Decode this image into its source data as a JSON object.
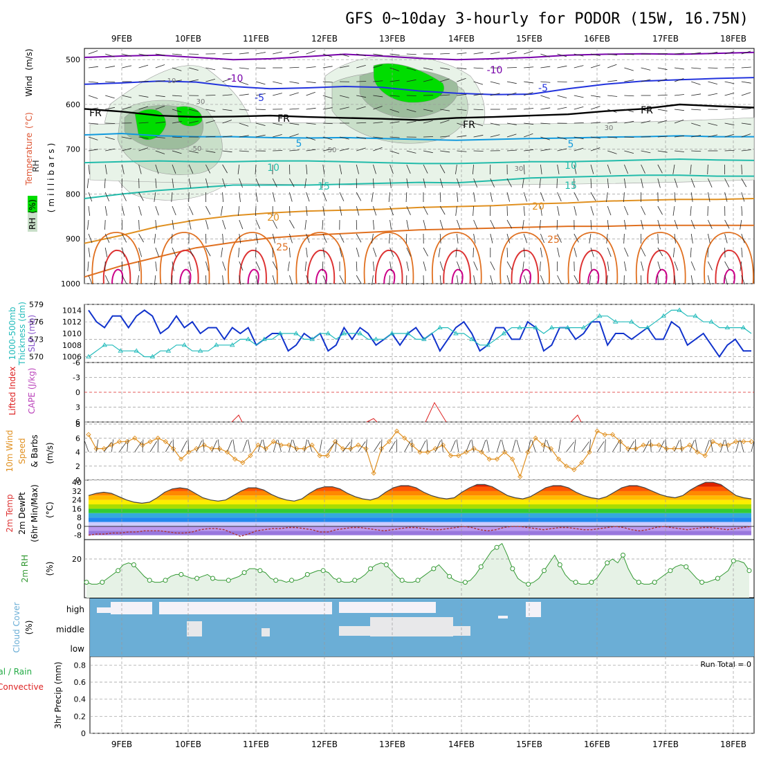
{
  "title": "GFS 0~10day 3-hourly for PODOR (15W, 16.75N)",
  "dates": [
    "9FEB",
    "10FEB",
    "11FEB",
    "12FEB",
    "13FEB",
    "14FEB",
    "15FEB",
    "16FEB",
    "17FEB",
    "18FEB"
  ],
  "colors": {
    "rh_light": "#e8f3e8",
    "rh_mid": "#c9dfc9",
    "rh_dark": "#9dbd9d",
    "rh_bright": "#00dd00",
    "temp_cold": "#7700aa",
    "temp_blue": "#2233dd",
    "temp_cyan": "#1199dd",
    "temp_teal": "#22bbaa",
    "temp_orange": "#e09020",
    "temp_red": "#dd3333",
    "temp_magenta": "#cc0088",
    "slp": "#1133cc",
    "thickness": "#22bbbb",
    "lifted": "#dd2222",
    "wind": "#e09020",
    "cloud": "#6baed6",
    "rh2m": "#339933"
  },
  "chart_data": [
    {
      "panel": "upper-air",
      "type": "contour",
      "ylabel_wind": "Wind",
      "ylabel_units": "(m/s)",
      "ylabel_temp": "Temperature",
      "ylabel_temp_units": "(°C)",
      "ylabel_rh": "RH",
      "ylabel_rh_units": "(%)",
      "ylabel_pressure": "(millibars)",
      "y_ticks": [
        "500",
        "600",
        "700",
        "800",
        "900",
        "1000"
      ],
      "y_range": [
        475,
        1000
      ],
      "isotherm_labels": [
        "-10",
        "-10",
        "-5",
        "-5",
        "FR",
        "FR",
        "FR",
        "FR",
        "5",
        "5",
        "10",
        "10",
        "15",
        "15",
        "20",
        "20",
        "25",
        "25"
      ],
      "rh_labels": [
        "10",
        "30",
        "50",
        "50",
        "30",
        "30"
      ],
      "isotherms": [
        {
          "label": "-10",
          "levels": [
            495,
            492,
            490,
            495,
            500,
            498,
            493,
            488,
            492,
            497,
            500,
            498,
            495,
            490,
            488,
            487,
            488,
            486,
            484
          ]
        },
        {
          "label": "-5",
          "levels": [
            555,
            552,
            548,
            550,
            560,
            565,
            563,
            560,
            562,
            570,
            575,
            578,
            577,
            565,
            555,
            548,
            545,
            542,
            540
          ]
        },
        {
          "label": "FR",
          "levels": [
            610,
            616,
            625,
            628,
            627,
            625,
            628,
            630,
            632,
            635,
            630,
            628,
            625,
            622,
            615,
            610,
            600,
            604,
            607
          ]
        },
        {
          "label": "5",
          "levels": [
            668,
            665,
            670,
            672,
            672,
            674,
            675,
            674,
            676,
            678,
            680,
            678,
            676,
            675,
            673,
            672,
            670,
            672,
            672
          ]
        },
        {
          "label": "10",
          "levels": [
            730,
            728,
            726,
            728,
            728,
            726,
            726,
            728,
            730,
            732,
            732,
            730,
            728,
            728,
            726,
            724,
            722,
            724,
            725
          ]
        },
        {
          "label": "15",
          "levels": [
            810,
            800,
            792,
            786,
            780,
            780,
            780,
            778,
            776,
            774,
            775,
            770,
            764,
            762,
            760,
            758,
            758,
            760,
            760
          ]
        },
        {
          "label": "20",
          "levels": [
            910,
            892,
            872,
            858,
            848,
            842,
            838,
            836,
            834,
            830,
            828,
            826,
            822,
            820,
            816,
            814,
            812,
            812,
            810
          ]
        },
        {
          "label": "25",
          "levels": [
            985,
            960,
            940,
            920,
            908,
            898,
            892,
            888,
            884,
            880,
            878,
            876,
            874,
            872,
            872,
            870,
            870,
            870,
            870
          ]
        }
      ]
    },
    {
      "panel": "thickness-slp",
      "type": "line",
      "ylabel_left": "1000-500mb",
      "ylabel_left2": "Thickness (dm)",
      "ylabel_right": "SLP (mb)",
      "y_ticks_left": [
        "579",
        "576",
        "573",
        "570"
      ],
      "y_ticks_right": [
        "1014",
        "1012",
        "1010",
        "1008",
        "1006"
      ],
      "y_range_left": [
        569,
        579
      ],
      "series": [
        {
          "name": "SLP",
          "values": [
            1014,
            1012,
            1011,
            1013,
            1013,
            1011,
            1013,
            1014,
            1013,
            1010,
            1011,
            1013,
            1011,
            1012,
            1010,
            1011,
            1011,
            1009,
            1011,
            1010,
            1011,
            1008,
            1009,
            1010,
            1010,
            1007,
            1008,
            1010,
            1009,
            1010,
            1007,
            1008,
            1011,
            1009,
            1011,
            1010,
            1008,
            1009,
            1010,
            1008,
            1010,
            1011,
            1009,
            1010,
            1007,
            1009,
            1011,
            1012,
            1010,
            1007,
            1008,
            1011,
            1011,
            1009,
            1009,
            1012,
            1011,
            1007,
            1008,
            1011,
            1011,
            1009,
            1010,
            1012,
            1012,
            1008,
            1010,
            1010,
            1009,
            1010,
            1011,
            1009,
            1009,
            1012,
            1011,
            1008,
            1009,
            1010,
            1008,
            1006,
            1008,
            1009,
            1007,
            1007
          ]
        },
        {
          "name": "Thickness",
          "values": [
            570,
            571,
            572,
            572,
            571,
            571,
            571,
            570,
            570,
            571,
            571,
            572,
            572,
            571,
            571,
            571,
            572,
            572,
            572,
            573,
            573,
            572,
            573,
            573,
            574,
            574,
            574,
            573,
            573,
            574,
            574,
            573,
            574,
            574,
            574,
            573,
            573,
            573,
            574,
            574,
            574,
            573,
            573,
            574,
            575,
            575,
            574,
            574,
            573,
            572,
            572,
            573,
            574,
            575,
            575,
            575,
            575,
            574,
            575,
            575,
            575,
            575,
            575,
            576,
            577,
            577,
            576,
            576,
            576,
            575,
            575,
            576,
            577,
            578,
            578,
            577,
            577,
            576,
            576,
            575,
            575,
            575,
            575,
            574
          ]
        }
      ]
    },
    {
      "panel": "lifted-cape",
      "type": "line",
      "ylabel_left": "Lifted Index",
      "ylabel_right": "CAPE (J/kg)",
      "y_ticks": [
        "-6",
        "-3",
        "0",
        "3",
        "6"
      ],
      "y_range": [
        -6,
        6
      ]
    },
    {
      "panel": "wind10m",
      "type": "line",
      "ylabel": "10m Wind",
      "ylabel2": "Speed",
      "ylabel3": "& Barbs",
      "ylabel_units": "(m/s)",
      "y_ticks": [
        "8",
        "6",
        "4",
        "2",
        "0"
      ],
      "y_range": [
        0,
        8
      ],
      "values": [
        6.5,
        4.5,
        4.5,
        5.0,
        5.5,
        5.5,
        6.0,
        5.0,
        5.5,
        6.0,
        5.5,
        4.5,
        3.0,
        4.0,
        4.5,
        5.0,
        4.5,
        4.5,
        4.0,
        3.0,
        2.5,
        3.5,
        5.0,
        4.5,
        5.5,
        5.0,
        5.0,
        4.5,
        4.5,
        5.0,
        3.5,
        3.5,
        5.5,
        4.5,
        4.5,
        5.0,
        4.5,
        1.0,
        4.5,
        5.5,
        7.0,
        6.0,
        5.0,
        4.0,
        4.0,
        4.5,
        5.0,
        3.5,
        3.5,
        4.0,
        4.5,
        4.0,
        3.0,
        3.0,
        4.0,
        3.0,
        0.5,
        4.0,
        6.0,
        5.0,
        4.5,
        3.0,
        2.0,
        1.5,
        2.5,
        4.0,
        7.0,
        6.5,
        6.5,
        5.5,
        4.5,
        4.5,
        5.0,
        5.0,
        5.0,
        4.5,
        4.5,
        4.5,
        5.0,
        4.0,
        3.5,
        5.5,
        5.0,
        5.0,
        5.5,
        5.5,
        5.5
      ]
    },
    {
      "panel": "temp2m",
      "type": "area",
      "ylabel": "2m Temp",
      "ylabel2": "2m DewPt",
      "ylabel3": "(6hr Min/Max)",
      "ylabel_units": "(°C)",
      "y_ticks": [
        "40",
        "32",
        "24",
        "16",
        "8",
        "0",
        "-8"
      ],
      "y_range": [
        -12,
        42
      ],
      "temp_series": [
        28,
        30,
        31,
        30,
        27,
        24,
        22,
        21,
        22,
        26,
        31,
        34,
        35,
        34,
        30,
        26,
        24,
        23,
        24,
        28,
        32,
        35,
        35,
        33,
        29,
        26,
        24,
        23,
        25,
        30,
        34,
        36,
        36,
        34,
        30,
        27,
        25,
        24,
        26,
        31,
        35,
        37,
        37,
        35,
        31,
        28,
        26,
        25,
        26,
        31,
        35,
        38,
        38,
        36,
        32,
        28,
        26,
        25,
        27,
        31,
        35,
        37,
        37,
        35,
        31,
        28,
        26,
        25,
        27,
        31,
        35,
        37,
        37,
        35,
        32,
        29,
        27,
        26,
        28,
        33,
        37,
        40,
        40,
        38,
        33,
        28,
        26,
        25
      ],
      "dewpoint_series": [
        -8,
        -7,
        -7,
        -6,
        -6,
        -5,
        -5,
        -4,
        -4,
        -4,
        -5,
        -6,
        -6,
        -5,
        -3,
        -2,
        -2,
        -3,
        -6,
        -9,
        -7,
        -4,
        -3,
        -2,
        -2,
        -1,
        -1,
        -2,
        -3,
        -5,
        -5,
        -3,
        -2,
        -1,
        -1,
        -2,
        -3,
        -4,
        -3,
        -2,
        -1,
        -1,
        -2,
        -3,
        -3,
        -2,
        -1,
        0,
        -1,
        -3,
        -4,
        -3,
        -1,
        0,
        0,
        -1,
        -2,
        -3,
        -2,
        -1,
        -1,
        -2,
        -3,
        -3,
        -2,
        -1,
        0,
        -1,
        -3,
        -4,
        -3,
        -1,
        0,
        -1,
        -2,
        -3,
        -2,
        -1,
        -1,
        -2,
        -3,
        -2,
        -1,
        0
      ]
    },
    {
      "panel": "rh2m",
      "type": "line",
      "ylabel": "2m RH",
      "ylabel_units": "(%)",
      "y_ticks": [
        "20"
      ],
      "y_range": [
        0,
        30
      ],
      "values": [
        8,
        7,
        7,
        8,
        10,
        12,
        14,
        17,
        18,
        17,
        14,
        11,
        9,
        8,
        8,
        9,
        11,
        12,
        12,
        11,
        10,
        10,
        11,
        12,
        10,
        9,
        9,
        9,
        10,
        11,
        13,
        15,
        15,
        14,
        13,
        10,
        9,
        9,
        8,
        9,
        9,
        10,
        12,
        13,
        14,
        14,
        13,
        10,
        9,
        8,
        8,
        9,
        10,
        12,
        15,
        17,
        18,
        17,
        14,
        11,
        9,
        8,
        8,
        9,
        11,
        13,
        15,
        17,
        14,
        11,
        9,
        8,
        8,
        9,
        12,
        16,
        20,
        24,
        26,
        28,
        22,
        15,
        10,
        8,
        7,
        8,
        10,
        14,
        18,
        22,
        17,
        12,
        9,
        8,
        7,
        7,
        8,
        10,
        14,
        18,
        20,
        18,
        22,
        15,
        10,
        8,
        7,
        7,
        8,
        10,
        12,
        14,
        16,
        17,
        16,
        13,
        10,
        8,
        8,
        9,
        10,
        12,
        14,
        19,
        19,
        18,
        14
      ]
    },
    {
      "panel": "cloud",
      "type": "heatmap",
      "ylabel": "Cloud Cover",
      "ylabel_units": "(%)",
      "levels": [
        "high",
        "middle",
        "low"
      ]
    },
    {
      "panel": "precip",
      "type": "bar",
      "ylabel": "3hr Precip (mm)",
      "ylabel_left1": "Total / Rain",
      "ylabel_left2": "Convective",
      "y_ticks": [
        "0.8",
        "0.6",
        "0.4",
        "0.2",
        "0"
      ],
      "y_range": [
        0,
        0.9
      ],
      "run_total": "Run Total = 0"
    }
  ]
}
